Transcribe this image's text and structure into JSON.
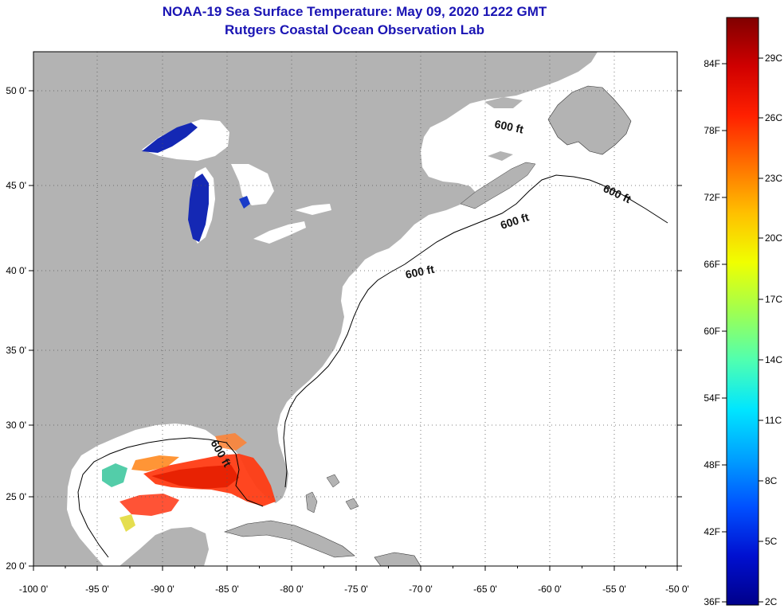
{
  "title": {
    "line1": "NOAA-19 Sea Surface Temperature:  May 09, 2020 1222 GMT",
    "line2": "Rutgers Coastal Ocean Observation Lab"
  },
  "map": {
    "lon_labels": [
      "-100 0'",
      "-95 0'",
      "-90 0'",
      "-85 0'",
      "-80 0'",
      "-75 0'",
      "-70 0'",
      "-65 0'",
      "-60 0'",
      "-55 0'",
      "-50 0'"
    ],
    "lat_labels": [
      "50 0'",
      "45 0'",
      "40 0'",
      "35 0'",
      "30 0'",
      "25 0'",
      "20 0'"
    ],
    "contour_label": "600 ft",
    "colors": {
      "land": "#b3b3b3",
      "ocean": "#ffffff",
      "cold": "#1428b4",
      "warm": "#ff3c14",
      "hot": "#e61e00"
    }
  },
  "colorbar": {
    "fahrenheit_labels": [
      "84F",
      "78F",
      "72F",
      "66F",
      "60F",
      "54F",
      "48F",
      "42F",
      "36F"
    ],
    "celsius_labels": [
      "29C",
      "26C",
      "23C",
      "20C",
      "17C",
      "14C",
      "11C",
      "8C",
      "5C",
      "2C"
    ],
    "gradient": [
      "#00008a",
      "#0010d0",
      "#0050ff",
      "#00a0ff",
      "#00e6ff",
      "#50ffb0",
      "#a0ff50",
      "#f0ff00",
      "#ffc000",
      "#ff7000",
      "#ff2000",
      "#d00000",
      "#800000"
    ]
  }
}
